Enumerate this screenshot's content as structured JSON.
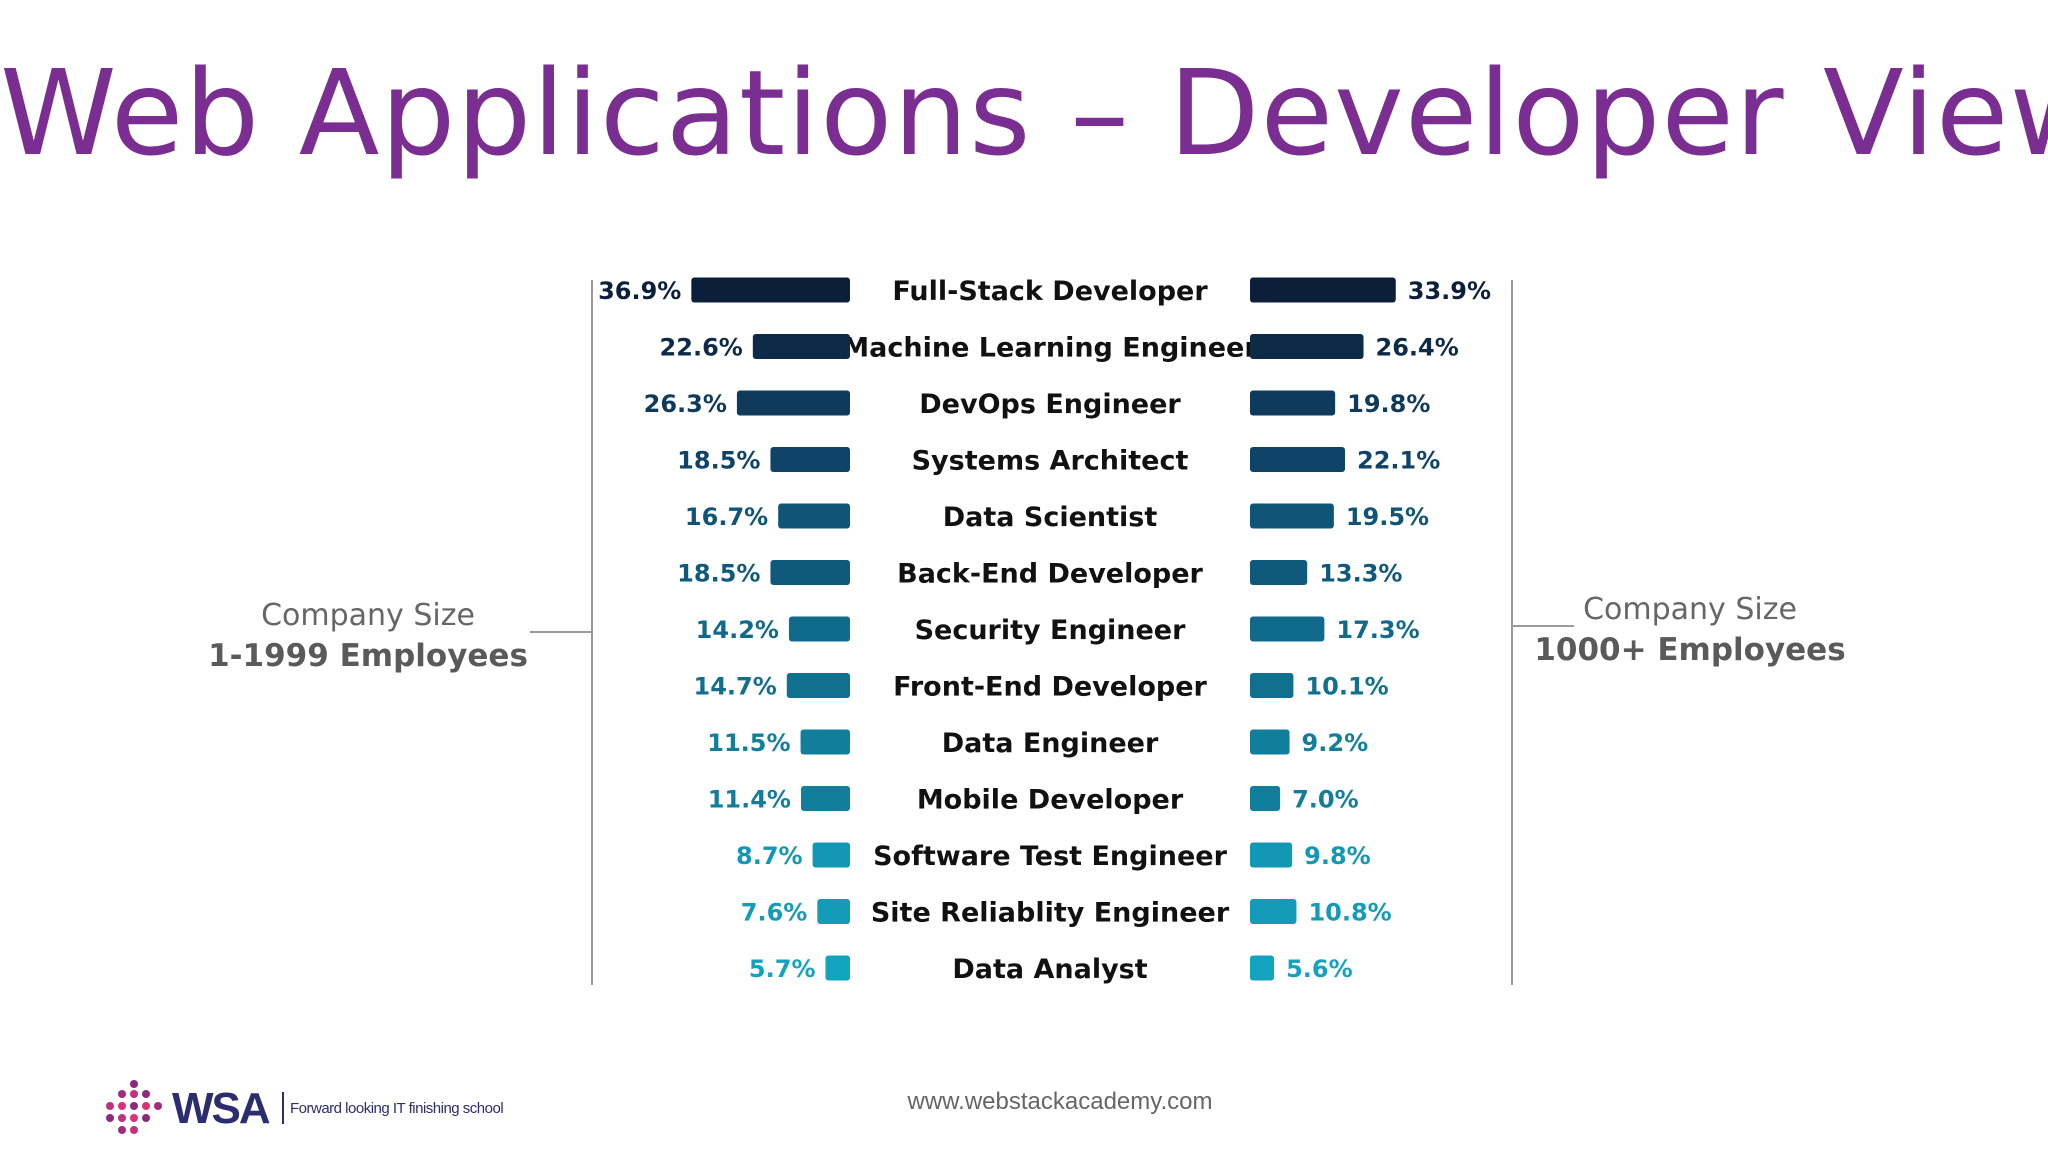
{
  "slide": {
    "title": "Web Applications – Developer View",
    "footer_url": "www.webstackacademy.com",
    "logo_text": "WSA",
    "logo_tagline": "Forward looking IT finishing school"
  },
  "chart_data": {
    "type": "bar",
    "orientation": "horizontal-butterfly",
    "title": "",
    "categories": [
      "Full-Stack Developer",
      "Machine Learning Engineer",
      "DevOps Engineer",
      "Systems Architect",
      "Data Scientist",
      "Back-End Developer",
      "Security Engineer",
      "Front-End Developer",
      "Data Engineer",
      "Mobile Developer",
      "Software Test Engineer",
      "Site Reliablity Engineer",
      "Data Analyst"
    ],
    "series": [
      {
        "name_line1": "Company Size",
        "name_line2": "1-1999 Employees",
        "side": "left",
        "values": [
          36.9,
          22.6,
          26.3,
          18.5,
          16.7,
          18.5,
          14.2,
          14.7,
          11.5,
          11.4,
          8.7,
          7.6,
          5.7
        ],
        "labels": [
          "36.9%",
          "22.6%",
          "26.3%",
          "18.5%",
          "16.7%",
          "18.5%",
          "14.2%",
          "14.7%",
          "11.5%",
          "11.4%",
          "8.7%",
          "7.6%",
          "5.7%"
        ]
      },
      {
        "name_line1": "Company Size",
        "name_line2": "1000+ Employees",
        "side": "right",
        "values": [
          33.9,
          26.4,
          19.8,
          22.1,
          19.5,
          13.3,
          17.3,
          10.1,
          9.2,
          7.0,
          9.8,
          10.8,
          5.6
        ],
        "labels": [
          "33.9%",
          "26.4%",
          "19.8%",
          "22.1%",
          "19.5%",
          "13.3%",
          "17.3%",
          "10.1%",
          "9.2%",
          "7.0%",
          "9.8%",
          "10.8%",
          "5.6%"
        ]
      }
    ],
    "colors": [
      "#0c1f3a",
      "#0d2a47",
      "#0e3a5c",
      "#0f4468",
      "#0f5577",
      "#0f5a7c",
      "#106a8b",
      "#10718f",
      "#117f9c",
      "#117f9c",
      "#1297b5",
      "#139bb8",
      "#14a3bf"
    ],
    "xlim": [
      0,
      40
    ]
  }
}
